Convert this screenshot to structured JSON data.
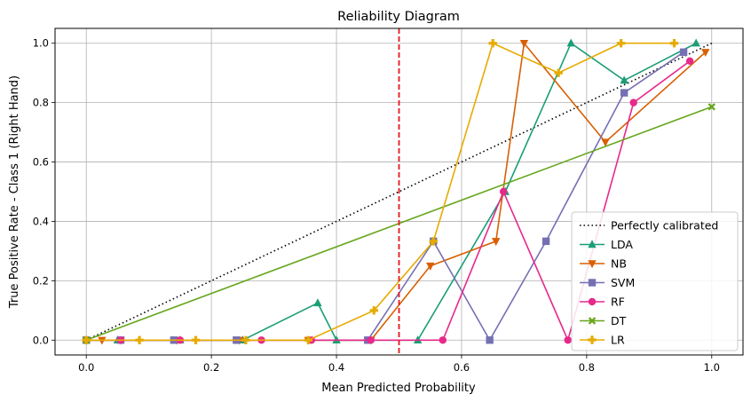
{
  "chart_data": {
    "type": "line",
    "title": "Reliability Diagram",
    "xlabel": "Mean Predicted Probability",
    "ylabel": "True Positive Rate - Class 1 (Right Hand)",
    "xlim": [
      -0.05,
      1.05
    ],
    "ylim": [
      -0.05,
      1.05
    ],
    "xticks": [
      0.0,
      0.2,
      0.4,
      0.6,
      0.8,
      1.0
    ],
    "xtick_labels": [
      "0.0",
      "0.2",
      "0.4",
      "0.6",
      "0.8",
      "1.0"
    ],
    "yticks": [
      0.0,
      0.2,
      0.4,
      0.6,
      0.8,
      1.0
    ],
    "ytick_labels": [
      "0.0",
      "0.2",
      "0.4",
      "0.6",
      "0.8",
      "1.0"
    ],
    "grid": true,
    "legend_position": "lower-right",
    "threshold_line": {
      "x": 0.5,
      "color": "#e41a1c",
      "style": "dashed"
    },
    "reference": {
      "name": "Perfectly calibrated",
      "x": [
        0,
        1
      ],
      "y": [
        0,
        1
      ],
      "color": "#000000",
      "style": "dotted"
    },
    "series": [
      {
        "name": "LDA",
        "color": "#1b9e77",
        "marker": "triangle-up",
        "x": [
          0.0,
          0.05,
          0.15,
          0.25,
          0.37,
          0.4,
          0.53,
          0.67,
          0.775,
          0.86,
          0.975
        ],
        "y": [
          0.0,
          0.0,
          0.0,
          0.0,
          0.125,
          0.0,
          0.0,
          0.5,
          1.0,
          0.875,
          1.0
        ]
      },
      {
        "name": "NB",
        "color": "#d95f02",
        "marker": "triangle-down",
        "x": [
          0.0,
          0.025,
          0.055,
          0.145,
          0.245,
          0.355,
          0.455,
          0.55,
          0.655,
          0.7,
          0.83,
          0.99
        ],
        "y": [
          0.0,
          0.0,
          0.0,
          0.0,
          0.0,
          0.0,
          0.0,
          0.25,
          0.333,
          1.0,
          0.667,
          0.97
        ]
      },
      {
        "name": "SVM",
        "color": "#7570b3",
        "marker": "square",
        "x": [
          0.0,
          0.055,
          0.14,
          0.24,
          0.45,
          0.555,
          0.645,
          0.735,
          0.86,
          0.955
        ],
        "y": [
          0.0,
          0.0,
          0.0,
          0.0,
          0.0,
          0.333,
          0.0,
          0.333,
          0.833,
          0.97
        ]
      },
      {
        "name": "RF",
        "color": "#e7298a",
        "marker": "circle",
        "x": [
          0.0,
          0.055,
          0.15,
          0.28,
          0.36,
          0.455,
          0.57,
          0.667,
          0.77,
          0.875,
          0.965
        ],
        "y": [
          0.0,
          0.0,
          0.0,
          0.0,
          0.0,
          0.0,
          0.0,
          0.5,
          0.0,
          0.8,
          0.94
        ]
      },
      {
        "name": "DT",
        "color": "#66a61e",
        "marker": "x-filled",
        "x": [
          0.0,
          1.0
        ],
        "y": [
          0.0,
          0.786
        ]
      },
      {
        "name": "LR",
        "color": "#e6ab02",
        "marker": "plus-filled",
        "x": [
          0.0,
          0.085,
          0.175,
          0.255,
          0.355,
          0.46,
          0.555,
          0.65,
          0.755,
          0.855,
          0.94
        ],
        "y": [
          0.0,
          0.0,
          0.0,
          0.0,
          0.0,
          0.1,
          0.333,
          1.0,
          0.9,
          1.0,
          1.0
        ]
      }
    ]
  }
}
